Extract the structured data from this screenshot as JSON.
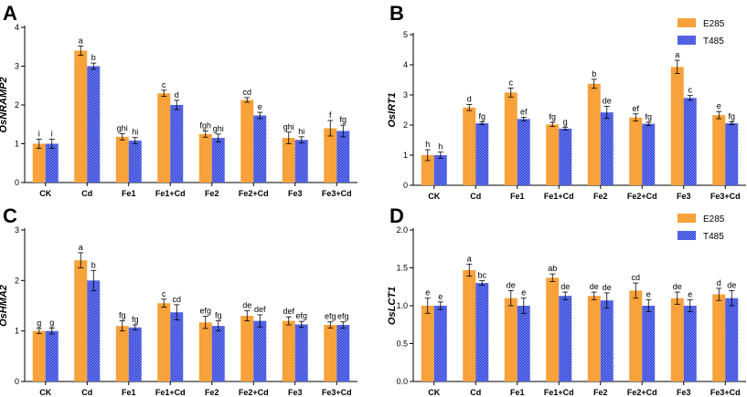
{
  "colors": {
    "e285": "#F7A23A",
    "t485": "#3D4FE0",
    "axis": "#000000"
  },
  "legend": {
    "series_a": "E285",
    "series_b": "T485"
  },
  "chart_data": [
    {
      "panel": "A",
      "type": "bar",
      "ylabel": "OsNRAMP2",
      "ylim": [
        0,
        4
      ],
      "yticks": [
        0,
        1,
        2,
        3,
        4
      ],
      "legend": false,
      "categories": [
        "CK",
        "Cd",
        "Fe1",
        "Fe1+Cd",
        "Fe2",
        "Fe2+Cd",
        "Fe3",
        "Fe3+Cd"
      ],
      "series": [
        {
          "name": "E285",
          "values": [
            1.0,
            3.4,
            1.18,
            2.3,
            1.25,
            2.13,
            1.15,
            1.4
          ],
          "errors": [
            0.12,
            0.12,
            0.08,
            0.08,
            0.08,
            0.06,
            0.15,
            0.2
          ],
          "labels": [
            "i",
            "a",
            "ghi",
            "c",
            "fgh",
            "cd",
            "ghi",
            "f"
          ]
        },
        {
          "name": "T485",
          "values": [
            1.0,
            3.0,
            1.08,
            2.0,
            1.15,
            1.73,
            1.1,
            1.33
          ],
          "errors": [
            0.12,
            0.08,
            0.08,
            0.12,
            0.1,
            0.08,
            0.08,
            0.15
          ],
          "labels": [
            "i",
            "b",
            "hi",
            "d",
            "ghi",
            "e",
            "hi",
            "fg"
          ]
        }
      ]
    },
    {
      "panel": "B",
      "type": "bar",
      "ylabel": "OsIRT1",
      "ylim": [
        0,
        5
      ],
      "yticks": [
        0,
        1,
        2,
        3,
        4,
        5
      ],
      "legend": true,
      "categories": [
        "CK",
        "Cd",
        "Fe1",
        "Fe1+Cd",
        "Fe2",
        "Fe2+Cd",
        "Fe3",
        "Fe3+Cd"
      ],
      "series": [
        {
          "name": "E285",
          "values": [
            1.0,
            2.58,
            3.08,
            2.02,
            3.37,
            2.25,
            3.93,
            2.33
          ],
          "errors": [
            0.18,
            0.1,
            0.15,
            0.07,
            0.15,
            0.12,
            0.22,
            0.12
          ],
          "labels": [
            "h",
            "d",
            "c",
            "fg",
            "b",
            "ef",
            "a",
            "e"
          ]
        },
        {
          "name": "T485",
          "values": [
            1.0,
            2.06,
            2.2,
            1.88,
            2.42,
            2.04,
            2.9,
            2.06
          ],
          "errors": [
            0.1,
            0.05,
            0.06,
            0.05,
            0.2,
            0.05,
            0.08,
            0.05
          ],
          "labels": [
            "h",
            "fg",
            "ef",
            "g",
            "de",
            "fg",
            "c",
            "fg"
          ]
        }
      ]
    },
    {
      "panel": "C",
      "type": "bar",
      "ylabel": "OsHMA2",
      "ylim": [
        0,
        3
      ],
      "yticks": [
        0,
        1,
        2,
        3
      ],
      "legend": false,
      "categories": [
        "CK",
        "Cd",
        "Fe1",
        "Fe1+Cd",
        "Fe2",
        "Fe2+Cd",
        "Fe3",
        "Fe3+Cd"
      ],
      "series": [
        {
          "name": "E285",
          "values": [
            1.0,
            2.4,
            1.1,
            1.55,
            1.17,
            1.3,
            1.2,
            1.12
          ],
          "errors": [
            0.05,
            0.15,
            0.1,
            0.08,
            0.12,
            0.1,
            0.08,
            0.06
          ],
          "labels": [
            "g",
            "a",
            "fg",
            "c",
            "efg",
            "de",
            "def",
            "efg"
          ]
        },
        {
          "name": "T485",
          "values": [
            1.0,
            2.0,
            1.07,
            1.37,
            1.1,
            1.2,
            1.13,
            1.12
          ],
          "errors": [
            0.06,
            0.2,
            0.05,
            0.15,
            0.1,
            0.12,
            0.06,
            0.06
          ],
          "labels": [
            "g",
            "b",
            "fg",
            "cd",
            "fg",
            "def",
            "efg",
            "efg"
          ]
        }
      ]
    },
    {
      "panel": "D",
      "type": "bar",
      "ylabel": "OsLCT1",
      "ylim": [
        0,
        2.0
      ],
      "yticks": [
        0.0,
        0.5,
        1.0,
        1.5,
        2.0
      ],
      "legend": true,
      "categories": [
        "CK",
        "Cd",
        "Fe1",
        "Fe1+Cd",
        "Fe2",
        "Fe2+Cd",
        "Fe3",
        "Fe3+Cd"
      ],
      "series": [
        {
          "name": "E285",
          "values": [
            1.0,
            1.47,
            1.1,
            1.37,
            1.13,
            1.2,
            1.1,
            1.15
          ],
          "errors": [
            0.1,
            0.08,
            0.1,
            0.05,
            0.05,
            0.1,
            0.08,
            0.08
          ],
          "labels": [
            "e",
            "a",
            "de",
            "ab",
            "de",
            "cd",
            "de",
            "d"
          ]
        },
        {
          "name": "T485",
          "values": [
            1.0,
            1.3,
            1.0,
            1.13,
            1.07,
            1.0,
            1.0,
            1.1
          ],
          "errors": [
            0.05,
            0.03,
            0.1,
            0.05,
            0.1,
            0.08,
            0.08,
            0.1
          ],
          "labels": [
            "e",
            "bc",
            "e",
            "de",
            "de",
            "e",
            "e",
            "de"
          ]
        }
      ]
    }
  ]
}
